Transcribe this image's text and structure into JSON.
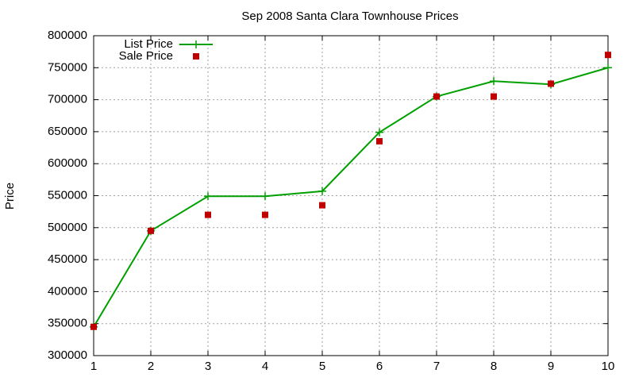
{
  "chart_data": {
    "type": "line",
    "title": "Sep 2008 Santa Clara Townhouse Prices",
    "y_label": "Price",
    "x": [
      1,
      2,
      3,
      4,
      5,
      6,
      7,
      8,
      9,
      10
    ],
    "series": [
      {
        "name": "List Price",
        "color": "#00a000",
        "mode": "lines+points",
        "values": [
          345000,
          495000,
          549000,
          549000,
          557000,
          649000,
          705000,
          729000,
          724000,
          750000
        ]
      },
      {
        "name": "Sale Price",
        "color": "#c00000",
        "mode": "points",
        "values": [
          345000,
          495000,
          520000,
          520000,
          535000,
          635000,
          705000,
          705000,
          725000,
          770000
        ]
      }
    ],
    "xlim": [
      1,
      10
    ],
    "xticks": [
      1,
      2,
      3,
      4,
      5,
      6,
      7,
      8,
      9,
      10
    ],
    "ylim": [
      300000,
      800000
    ],
    "yticks": [
      300000,
      350000,
      400000,
      450000,
      500000,
      550000,
      600000,
      650000,
      700000,
      750000,
      800000
    ],
    "grid": true,
    "legend": "top-left"
  }
}
